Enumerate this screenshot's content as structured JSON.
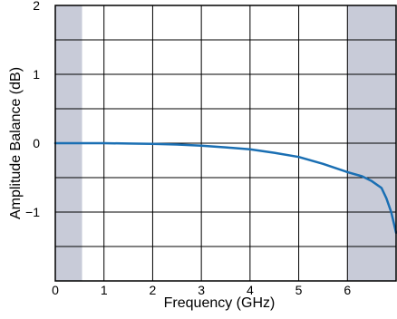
{
  "chart_data": {
    "type": "line",
    "title": "",
    "xlabel": "Frequency (GHz)",
    "ylabel": "Amplitude Balance (dB)",
    "xlim": [
      0,
      7
    ],
    "ylim": [
      -2,
      2
    ],
    "grid": true,
    "x_ticks": [
      0,
      1,
      2,
      3,
      4,
      5,
      6
    ],
    "x_tick_labels": [
      "0",
      "1",
      "2",
      "3",
      "4",
      "5",
      "6"
    ],
    "x_grid": [
      1,
      2,
      3,
      4,
      5,
      6
    ],
    "y_ticks": [
      2,
      1,
      0,
      -1
    ],
    "y_tick_labels": [
      "2",
      "1",
      "0",
      "−1"
    ],
    "y_grid": [
      1.5,
      1,
      0.5,
      0,
      -0.5,
      -1,
      -1.5
    ],
    "shaded_regions": [
      {
        "x_start": 0,
        "x_end": 0.55
      },
      {
        "x_start": 6,
        "x_end": 7
      }
    ],
    "series": [
      {
        "x": [
          0,
          0.5,
          1,
          1.5,
          2,
          2.5,
          3,
          3.5,
          4,
          4.5,
          5,
          5.5,
          6,
          6.3,
          6.5,
          6.7,
          6.8,
          6.9,
          7
        ],
        "values": [
          0,
          0,
          0,
          -0.005,
          -0.01,
          -0.02,
          -0.035,
          -0.06,
          -0.09,
          -0.14,
          -0.2,
          -0.3,
          -0.42,
          -0.48,
          -0.55,
          -0.65,
          -0.8,
          -1.0,
          -1.3
        ]
      }
    ],
    "colors": {
      "line": "#1a6fb3",
      "shade": "#c8cbd8",
      "grid": "#000000",
      "frame": "#000000"
    }
  }
}
